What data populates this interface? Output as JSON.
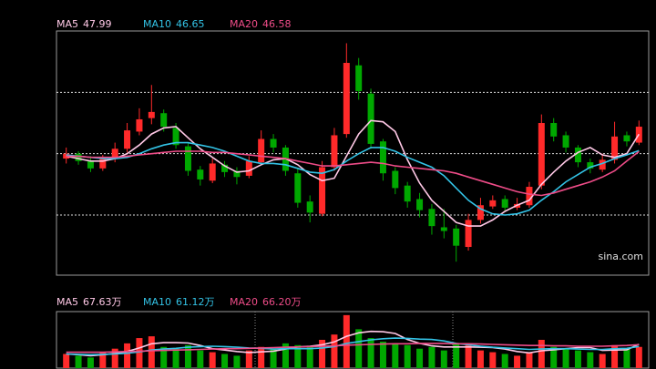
{
  "chart_data": [
    {
      "type": "candlestick",
      "up_color": "#ff2a2a",
      "down_color": "#00a800",
      "ylim": [
        36.5,
        56.4
      ],
      "yticks": [
        41.4,
        46.4,
        51.4
      ],
      "grid": true,
      "watermark": "sina.com",
      "open": [
        46.0,
        46.4,
        45.8,
        45.2,
        46.0,
        46.8,
        48.2,
        49.3,
        49.7,
        48.5,
        47.0,
        45.1,
        44.2,
        45.5,
        45.0,
        44.6,
        45.7,
        47.6,
        46.9,
        44.8,
        42.5,
        41.5,
        45.3,
        48.0,
        53.6,
        51.3,
        47.4,
        45.0,
        43.8,
        42.7,
        41.9,
        40.4,
        40.3,
        38.8,
        41.0,
        42.1,
        42.7,
        42.0,
        42.2,
        43.8,
        48.9,
        47.9,
        46.9,
        45.7,
        45.1,
        45.9,
        47.9,
        47.3
      ],
      "high": [
        46.9,
        46.6,
        46.2,
        46.3,
        47.3,
        48.9,
        50.1,
        52.0,
        50.0,
        48.9,
        47.3,
        45.4,
        46.0,
        45.8,
        45.3,
        46.2,
        48.3,
        48.0,
        47.1,
        45.2,
        43.0,
        45.8,
        48.5,
        55.4,
        54.2,
        51.7,
        47.6,
        45.3,
        44.1,
        43.2,
        42.3,
        41.9,
        40.6,
        41.5,
        42.8,
        43.0,
        43.0,
        42.8,
        44.1,
        49.6,
        49.3,
        48.2,
        47.1,
        46.0,
        46.4,
        49.0,
        48.2,
        49.1
      ],
      "low": [
        45.6,
        45.5,
        44.9,
        45.0,
        45.7,
        46.5,
        47.9,
        48.8,
        48.2,
        46.8,
        44.6,
        43.8,
        44.0,
        44.5,
        43.9,
        44.4,
        45.5,
        46.5,
        44.6,
        42.0,
        40.8,
        41.3,
        45.0,
        47.7,
        50.8,
        46.8,
        44.2,
        43.1,
        42.0,
        41.2,
        39.8,
        39.5,
        37.6,
        38.5,
        40.7,
        41.9,
        41.7,
        41.8,
        42.0,
        43.5,
        47.4,
        46.5,
        45.3,
        44.8,
        44.9,
        45.6,
        47.0,
        47.1
      ],
      "close": [
        46.4,
        45.8,
        45.2,
        46.0,
        46.8,
        48.3,
        49.2,
        49.8,
        48.6,
        47.1,
        45.0,
        44.3,
        45.6,
        44.9,
        44.5,
        45.8,
        47.6,
        46.9,
        45.0,
        42.4,
        41.6,
        45.3,
        47.9,
        53.8,
        51.5,
        47.2,
        44.8,
        43.6,
        42.5,
        41.8,
        40.5,
        40.1,
        38.9,
        41.0,
        42.2,
        42.6,
        42.0,
        42.3,
        43.7,
        48.9,
        47.8,
        46.9,
        45.7,
        45.2,
        45.9,
        47.8,
        47.4,
        48.6
      ],
      "series": [
        {
          "name": "MA5",
          "color": "#ffc8e6",
          "values": [
            46.2,
            46.0,
            45.8,
            45.8,
            46.0,
            46.4,
            47.1,
            48.0,
            48.5,
            48.6,
            47.7,
            46.8,
            46.1,
            45.4,
            44.9,
            45.0,
            45.5,
            45.9,
            46.0,
            45.5,
            44.7,
            44.2,
            44.4,
            46.2,
            48.0,
            49.1,
            49.0,
            48.2,
            45.9,
            44.0,
            42.6,
            41.7,
            40.8,
            40.5,
            40.5,
            41.0,
            41.7,
            42.2,
            42.6,
            43.9,
            44.9,
            45.8,
            46.5,
            46.9,
            46.3,
            46.1,
            46.4,
            47.99
          ]
        },
        {
          "name": "MA10",
          "color": "#33c3e6",
          "values": [
            46.3,
            46.2,
            46.1,
            46.0,
            46.0,
            46.1,
            46.4,
            46.8,
            47.1,
            47.3,
            47.3,
            47.1,
            46.9,
            46.6,
            46.2,
            45.8,
            45.6,
            45.6,
            45.5,
            45.2,
            44.9,
            44.8,
            45.1,
            45.8,
            46.4,
            46.9,
            46.9,
            46.6,
            46.1,
            45.7,
            45.3,
            44.6,
            43.6,
            42.6,
            41.9,
            41.5,
            41.4,
            41.5,
            41.8,
            42.6,
            43.3,
            44.1,
            44.7,
            45.3,
            45.6,
            46.0,
            46.3,
            46.65
          ]
        },
        {
          "name": "MA20",
          "color": "#ee4c88",
          "values": [
            46.2,
            46.2,
            46.1,
            46.1,
            46.1,
            46.2,
            46.3,
            46.4,
            46.5,
            46.6,
            46.6,
            46.6,
            46.5,
            46.5,
            46.4,
            46.3,
            46.2,
            46.1,
            46.0,
            45.8,
            45.6,
            45.4,
            45.4,
            45.5,
            45.6,
            45.7,
            45.6,
            45.4,
            45.3,
            45.2,
            45.1,
            45.0,
            44.8,
            44.5,
            44.2,
            43.9,
            43.6,
            43.3,
            43.1,
            43.0,
            43.2,
            43.5,
            43.8,
            44.1,
            44.5,
            45.0,
            45.8,
            46.58
          ]
        }
      ]
    },
    {
      "type": "volume",
      "ylim": [
        0,
        160
      ],
      "values": [
        40,
        35,
        30,
        45,
        55,
        70,
        85,
        90,
        60,
        55,
        65,
        50,
        45,
        40,
        35,
        50,
        60,
        55,
        70,
        65,
        60,
        80,
        95,
        150,
        110,
        85,
        75,
        70,
        65,
        55,
        60,
        50,
        70,
        65,
        50,
        45,
        40,
        35,
        45,
        80,
        60,
        55,
        50,
        45,
        40,
        65,
        55,
        60
      ],
      "series": [
        {
          "name": "MA5",
          "color": "#ffc8e6",
          "last_label": "67.63万",
          "values": [
            40,
            38,
            35,
            38,
            41,
            47,
            57,
            69,
            72,
            72,
            71,
            64,
            55,
            51,
            47,
            44,
            46,
            48,
            54,
            60,
            62,
            66,
            74,
            90,
            100,
            104,
            103,
            98,
            81,
            70,
            63,
            60,
            60,
            60,
            59,
            58,
            54,
            47,
            43,
            49,
            52,
            55,
            58,
            58,
            50,
            51,
            52,
            67.63
          ]
        },
        {
          "name": "MA10",
          "color": "#33c3e6",
          "last_label": "61.12万",
          "values": [
            40,
            39,
            38,
            39,
            40,
            42,
            46,
            51,
            54,
            56,
            59,
            61,
            62,
            61,
            59,
            57,
            56,
            54,
            55,
            55,
            55,
            57,
            61,
            70,
            75,
            80,
            83,
            85,
            84,
            82,
            81,
            77,
            70,
            66,
            62,
            59,
            57,
            55,
            53,
            54,
            55,
            55,
            54,
            53,
            53,
            55,
            56,
            61.12
          ]
        },
        {
          "name": "MA20",
          "color": "#ee4c88",
          "last_label": "66.20万",
          "values": [
            45,
            45,
            45,
            45,
            46,
            47,
            48,
            49,
            50,
            51,
            52,
            53,
            54,
            55,
            55,
            56,
            57,
            58,
            59,
            60,
            61,
            62,
            63,
            65,
            66,
            67,
            68,
            69,
            69,
            70,
            70,
            70,
            69,
            69,
            68,
            67,
            66,
            65,
            64,
            64,
            63,
            63,
            62,
            62,
            62,
            63,
            64,
            66.2
          ]
        }
      ]
    }
  ]
}
